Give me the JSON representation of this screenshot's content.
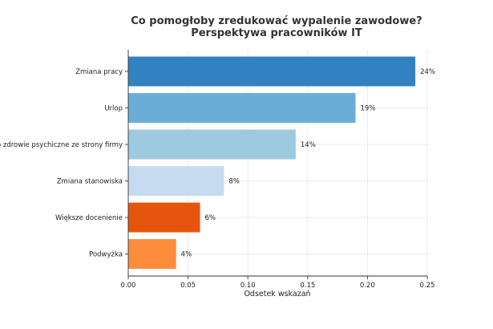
{
  "chart_data": {
    "type": "bar",
    "orientation": "horizontal",
    "title": [
      "Co pomogłoby zredukować wypalenie zawodowe?",
      "Perspektywa pracowników IT"
    ],
    "xlabel": "Odsetek wskazań",
    "ylabel": "",
    "xlim": [
      0,
      0.25
    ],
    "xticks": [
      "0.00",
      "0.05",
      "0.10",
      "0.15",
      "0.20",
      "0.25"
    ],
    "xtick_values": [
      0,
      0.05,
      0.1,
      0.15,
      0.2,
      0.25
    ],
    "grid": true,
    "categories": [
      "Zmiana pracy",
      "Urlop",
      "Opieka o zdrowie psychiczne ze strony firmy",
      "Zmiana stanowiska",
      "Większe docenienie",
      "Podwyżka"
    ],
    "values": [
      0.24,
      0.19,
      0.14,
      0.08,
      0.06,
      0.04
    ],
    "data_labels": [
      "24%",
      "19%",
      "14%",
      "8%",
      "6%",
      "4%"
    ],
    "colors": [
      "#3282c1",
      "#6aaed6",
      "#9ecae1",
      "#c6dbef",
      "#e6550d",
      "#fd8d3c"
    ]
  }
}
